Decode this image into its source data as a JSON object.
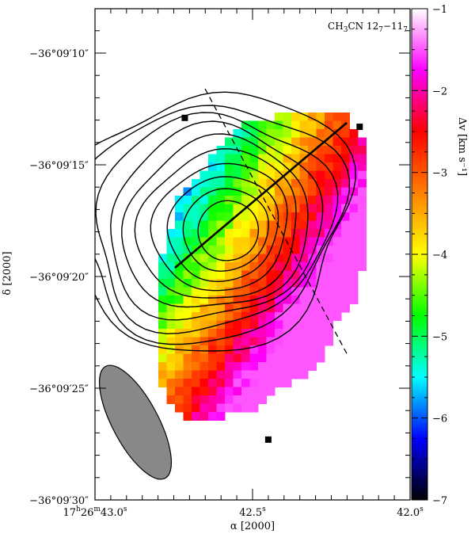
{
  "chart_data": {
    "type": "heatmap",
    "title": "CH3CN 12_7-11_7",
    "title_parts": {
      "base": "CH",
      "sub1": "3",
      "mid": "CN 12",
      "sub2": "7",
      "dash": "−11",
      "sub3": "7"
    },
    "xlabel": "α [2000]",
    "ylabel": "δ [2000]",
    "colorbar_label": "Δv [km s⁻¹]",
    "x_ticks": [
      {
        "pos": 0,
        "label": "17h26m43.0s",
        "parts": [
          "17",
          "h",
          "26",
          "m",
          "43.0",
          "s"
        ]
      },
      {
        "pos": 0.5,
        "label": "42.5s",
        "parts": [
          "42.5",
          "s"
        ]
      },
      {
        "pos": 1,
        "label": "42.0s",
        "parts": [
          "42.0",
          "s"
        ]
      }
    ],
    "y_ticks": [
      {
        "offset": 10,
        "label": "−36°09′10″"
      },
      {
        "offset": 15,
        "label": "−36°09′15″"
      },
      {
        "offset": 20,
        "label": "−36°09′20″"
      },
      {
        "offset": 25,
        "label": "−36°09′25″"
      },
      {
        "offset": 30,
        "label": "−36°09′30″"
      }
    ],
    "colorbar": {
      "vmin": -7,
      "vmax": -1,
      "ticks": [
        {
          "value": -1,
          "label": "−1"
        },
        {
          "value": -2,
          "label": "−2"
        },
        {
          "value": -3,
          "label": "−3"
        },
        {
          "value": -4,
          "label": "−4"
        },
        {
          "value": -5,
          "label": "−5"
        },
        {
          "value": -6,
          "label": "−6"
        },
        {
          "value": -7,
          "label": "−7"
        }
      ],
      "stops": [
        "#000000",
        "#0000ff",
        "#00ffff",
        "#00ff00",
        "#ffff00",
        "#ff8000",
        "#ff0000",
        "#ff00ff",
        "#ffffff"
      ]
    },
    "velocity_field": {
      "center_offset": [
        0.42,
        18.0
      ],
      "center_velocity": -4.2,
      "gradient_per_arcsec": 0.62,
      "gradient_direction": [
        -0.87,
        -0.49
      ],
      "range": [
        -7,
        -1.5
      ]
    },
    "contours_levels": 10,
    "peak_offset": [
      0.43,
      18.0
    ],
    "markers": [
      {
        "ra_offset": 0.285,
        "dec_offset": 12.9
      },
      {
        "ra_offset": 0.84,
        "dec_offset": 13.3
      },
      {
        "ra_offset": 0.55,
        "dec_offset": 27.3
      }
    ],
    "beam": {
      "major_arcsec": 5.5,
      "minor_arcsec": 1.9,
      "position_angle_deg": -28
    }
  }
}
